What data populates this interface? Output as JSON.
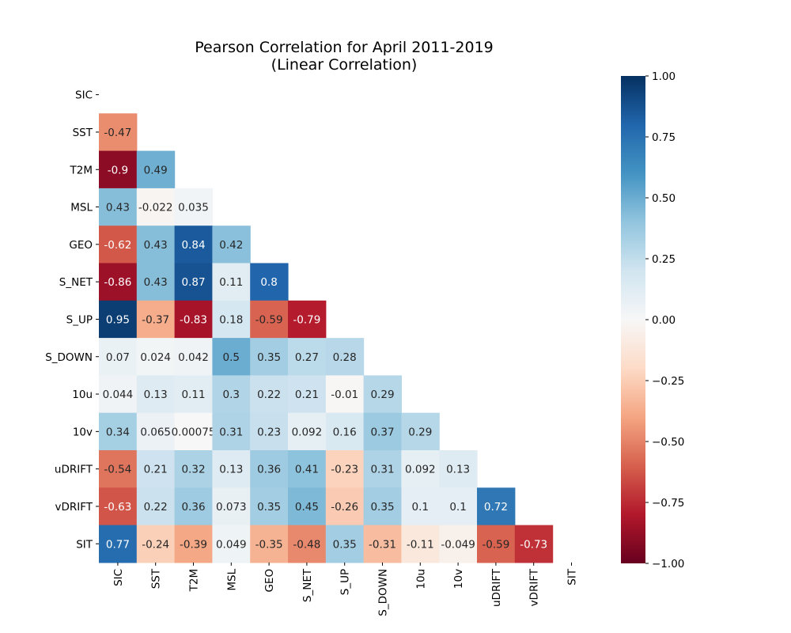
{
  "chart_data": {
    "type": "heatmap",
    "title_line1": "Pearson Correlation for April 2011-2019",
    "title_line2": "(Linear Correlation)",
    "variables": [
      "SIC",
      "SST",
      "T2M",
      "MSL",
      "GEO",
      "S_NET",
      "S_UP",
      "S_DOWN",
      "10u",
      "10v",
      "uDRIFT",
      "vDRIFT",
      "SIT"
    ],
    "mask": "upper-triangle-including-diagonal",
    "rows": [
      [],
      [
        -0.47
      ],
      [
        -0.9,
        0.49
      ],
      [
        0.43,
        -0.022,
        0.035
      ],
      [
        -0.62,
        0.43,
        0.84,
        0.42
      ],
      [
        -0.86,
        0.43,
        0.87,
        0.11,
        0.8
      ],
      [
        0.95,
        -0.37,
        -0.83,
        0.18,
        -0.59,
        -0.79
      ],
      [
        0.07,
        0.024,
        0.042,
        0.5,
        0.35,
        0.27,
        0.28
      ],
      [
        0.044,
        0.13,
        0.11,
        0.3,
        0.22,
        0.21,
        -0.01,
        0.29
      ],
      [
        0.34,
        0.065,
        0.00075,
        0.31,
        0.23,
        0.092,
        0.16,
        0.37,
        0.29
      ],
      [
        -0.54,
        0.21,
        0.32,
        0.13,
        0.36,
        0.41,
        -0.23,
        0.31,
        0.092,
        0.13
      ],
      [
        -0.63,
        0.22,
        0.36,
        0.073,
        0.35,
        0.45,
        -0.26,
        0.35,
        0.1,
        0.1,
        0.72
      ],
      [
        0.77,
        -0.24,
        -0.39,
        0.049,
        -0.35,
        -0.48,
        0.35,
        -0.31,
        -0.11,
        -0.049,
        -0.59,
        -0.73
      ]
    ],
    "colorbar": {
      "colormap": "RdBu",
      "vmin": -1.0,
      "vmax": 1.0,
      "ticks": [
        "1.00",
        "0.75",
        "0.50",
        "0.25",
        "0.00",
        "−0.25",
        "−0.50",
        "−0.75",
        "−1.00"
      ],
      "tick_values": [
        1.0,
        0.75,
        0.5,
        0.25,
        0.0,
        -0.25,
        -0.5,
        -0.75,
        -1.0
      ]
    }
  }
}
